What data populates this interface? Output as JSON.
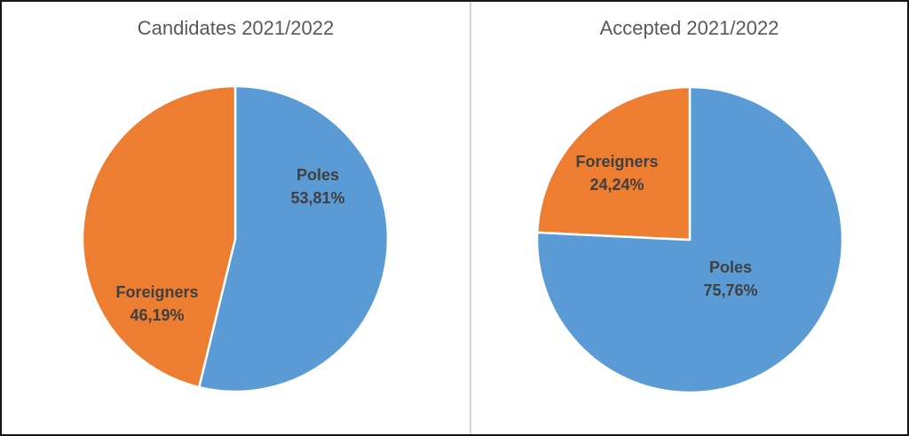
{
  "window": {
    "background": "#ffffff",
    "frame_border_color": "#161616",
    "panel_divider_color": "#d6d6d6"
  },
  "text_colors": {
    "chart_title": "#595959",
    "data_label": "#404040",
    "slice_border": "#ffffff"
  },
  "chart_data": [
    {
      "type": "pie",
      "title": "Candidates 2021/2022",
      "categories": [
        "Poles",
        "Foreigners"
      ],
      "values": [
        53.81,
        46.19
      ],
      "unit": "%",
      "legend": "none",
      "start_angle_deg": 0,
      "direction": "clockwise",
      "data_labels": "category name and percent, inside slices",
      "slices": [
        {
          "label": "Poles",
          "percent": 53.81,
          "percent_text": "53,81%",
          "color": "#5B9BD5"
        },
        {
          "label": "Foreigners",
          "percent": 46.19,
          "percent_text": "46,19%",
          "color": "#ED7D31"
        }
      ]
    },
    {
      "type": "pie",
      "title": "Accepted 2021/2022",
      "categories": [
        "Poles",
        "Foreigners"
      ],
      "values": [
        75.76,
        24.24
      ],
      "unit": "%",
      "legend": "none",
      "start_angle_deg": 0,
      "direction": "clockwise",
      "data_labels": "category name and percent, inside slices",
      "slices": [
        {
          "label": "Poles",
          "percent": 75.76,
          "percent_text": "75,76%",
          "color": "#5B9BD5"
        },
        {
          "label": "Foreigners",
          "percent": 24.24,
          "percent_text": "24,24%",
          "color": "#ED7D31"
        }
      ]
    }
  ]
}
